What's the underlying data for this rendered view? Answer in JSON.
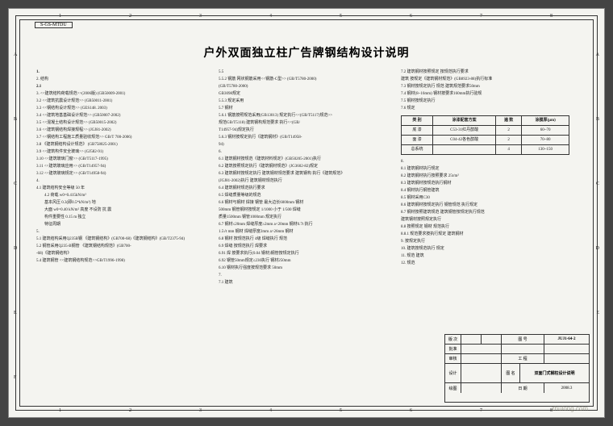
{
  "ref_code": "S-GS-MTDU",
  "title": "户外双面独立柱广告牌钢结构设计说明",
  "ruler": {
    "top_nums": [
      "1",
      "2",
      "3",
      "4",
      "5",
      "6",
      "7",
      "8"
    ],
    "left_letters": [
      "A",
      "B",
      "C",
      "D",
      "E",
      "F"
    ]
  },
  "col1": [
    {
      "t": "1.",
      "cls": "bold"
    },
    {
      "t": "2.  结构"
    },
    {
      "t": "2.1",
      "cls": "bold"
    },
    {
      "t": "3.  <<建筑结构荷载规范>>(2006版)   (GB50009-2001)"
    },
    {
      "t": "3.2  <<建筑抗震设计规范>>             (GB50011-2001)"
    },
    {
      "t": "3.3  <<钢结构设计规范>>               (GES148. 2003)"
    },
    {
      "t": "3.4  <<建筑地基基础设计规范>>         (GB50007-2002)"
    },
    {
      "t": "3.5  <<混凝土结构设计规范>>           (GB50015-2002)"
    },
    {
      "t": "3.6  <<建筑钢结构焊接规程>>           (JGJ81-2002)"
    },
    {
      "t": "3.7  <<钢结构工程施工质量验收规范>>   GB/T 700-2006)"
    },
    {
      "t": "3.8  《建筑钢结构设计规范》     (GB758025-2001)"
    },
    {
      "t": "3.9  <<建筑构件安全玻璃>>           (GJ582-91)"
    },
    {
      "t": "3.10 <<建筑玻璃门窗>>              (GB/T5117-1995)"
    },
    {
      "t": "3.11 <<建筑玻璃应用>>              (GB/T14957-94)"
    },
    {
      "t": "3.12 <<建筑玻璃规定>>              (GB/T14958-94)"
    },
    {
      "t": "4."
    },
    {
      "t": "4.1 建筑结构安全等级  50 年"
    },
    {
      "t": "4.2 荷载  w0=0.415kN/m²",
      "cls": "sub"
    },
    {
      "t": "     基本风压 0.3(即0.5*kN/m²)   地",
      "cls": "sub"
    },
    {
      "t": "     大面  w0=0.40 kN/m²     高度    不设防    抗  震",
      "cls": "sub"
    },
    {
      "t": "     构件重要性  0.15 m      独立",
      "cls": "sub"
    },
    {
      "t": "     特征周期",
      "cls": "sub"
    },
    {
      "t": "5."
    },
    {
      "t": "5.1  建筑结构采用Q235B钢 《建筑钢结构》(GB700-68)《建筑钢结构》(GB/T2375-94)"
    },
    {
      "t": "5.2  钢管采用Q235-B钢管 《建筑钢结构规范》(GB700-"
    },
    {
      "t": "     -68)《建筑钢结构》"
    },
    {
      "t": "5.4  建筑钢管 <<建筑钢结构规范>>GB/T1996-1998)"
    }
  ],
  "col2": [
    {
      "t": "5.5"
    },
    {
      "t": "5.5.2 钢筋  网状钢筋采用<<钢筋-C型>>   (GB/T5780-2000)"
    },
    {
      "t": "                                    (GB/T5780-2000)"
    },
    {
      "t": "              GB3098规定"
    },
    {
      "t": "5.5.3 规定采用"
    },
    {
      "t": "5.7  钢材"
    },
    {
      "t": "5.6.1 钢筋按照规范采用(GB13013)  规定执行<<(GB/T5117)规范>>"
    },
    {
      "t": "       规范GB/T5118)  建筑钢构规范要求  执行<<(GB/"
    },
    {
      "t": "       T14957-94)规定执行"
    },
    {
      "t": "5.6.3 钢材按规定执行《建筑钢材》(GB/T14958-"
    },
    {
      "t": "       94)"
    },
    {
      "t": "6."
    },
    {
      "t": "6.1  建筑钢材按规范《建筑材料规定》(GB50205-2001)执行"
    },
    {
      "t": "6.2  建筑按照规定执行《建筑钢材规范》(JG3602-82)规定"
    },
    {
      "t": "6.3  建筑钢材按规定执行 建筑钢材规范要求 建筑钢构 执行《建筑规范》"
    },
    {
      "t": "     (JGJ81-2002)执行  建筑钢材规范执行"
    },
    {
      "t": "6.4  建筑钢材规范执行要求"
    },
    {
      "t": "6.5  焊缝质量等级的规范"
    },
    {
      "t": "6.6  钢材与钢材 焊接  钢管 最大边长6000mm 钢材"
    },
    {
      "t": "     500mm 钢管钢材按规定 1/1000  小于 1/500  焊缝"
    },
    {
      "t": "     质量1500mm 钢管1000mm 规定执行"
    },
    {
      "t": "6.7  钢材≤20mm 焊缝厚度≥2mm a<20mm 钢材0.7t 执行"
    },
    {
      "t": "     1.5√t mm 钢材  焊缝厚度2mm a>26mm 钢材"
    },
    {
      "t": "6.8  钢材 按规范执行 4级 焊缝执行 规范"
    },
    {
      "t": "6.9  焊缝 按规范执行 焊要求"
    },
    {
      "t": "      6.91 焊 按要求执行(0.04 钢材)钢管按规定执行"
    },
    {
      "t": "      6.92 钢管50mm规定≤230执行 钢材250mm"
    },
    {
      "t": "6.10 钢材执行强度按规范要求 50mm"
    },
    {
      "t": "7."
    },
    {
      "t": "7.1  建筑"
    }
  ],
  "col3": {
    "lines_before": [
      {
        "t": "7.2  建筑钢材按照规定 按规范执行要求"
      },
      {
        "t": "     建筑  按规定《建筑钢材规范》(GB8923-88)执行标准"
      },
      {
        "t": "7.3  钢材按规定执行 规范 建筑规范要求50mm"
      },
      {
        "t": "7.4  钢材(8~16mm) 钢材按要求160mm执行验规"
      },
      {
        "t": "7.5  钢材按规定执行"
      },
      {
        "t": "7.6  规定"
      }
    ],
    "table": {
      "headers": [
        "类 别",
        "涂漆配套方案",
        "遍 数",
        "涂膜厚(μm)"
      ],
      "rows": [
        [
          "底 漆",
          "C53-31红丹醇酸",
          "2",
          "60~70"
        ],
        [
          "面 漆",
          "C04-42各色醇酸",
          "2",
          "70~80"
        ],
        [
          "总系统",
          "",
          "4",
          "130~150"
        ]
      ]
    },
    "lines_after": [
      {
        "t": "8."
      },
      {
        "t": "8.1  建筑钢材执行规定"
      },
      {
        "t": "8.2  建筑钢材执行按照要求 25t/m²"
      },
      {
        "t": "8.3  建筑钢材按规范执行钢材"
      },
      {
        "t": "8.4  钢材执行钢管建筑"
      },
      {
        "t": "8.5  钢材采用C30"
      },
      {
        "t": "8.6  建筑钢材按规定执行 钢管规范 执行规定"
      },
      {
        "t": "8.7  钢材按照建筑规范 建筑钢管按规定执行规范"
      },
      {
        "t": "     建筑钢材按照规定执行"
      },
      {
        "t": "8.8  按照规定 钢材 规范执行"
      },
      {
        "t": "8.8.1 规范要求按执行规定 建筑钢材"
      },
      {
        "t": "9.   按规定执行"
      },
      {
        "t": "10.  建筑按规范执行 规定"
      },
      {
        "t": "11.  规范 建筑"
      },
      {
        "t": "12.  规范"
      }
    ]
  },
  "title_block": {
    "drawing_no": "JUJ1-64-2",
    "drawing_name": "双面门式钢柱设计说明",
    "date": "2008.3",
    "labels": {
      "ver": "版 次",
      "app": "批准",
      "chk": "审核",
      "des": "设计",
      "dra": "绘图",
      "pro": "工 程",
      "dwg": "图 号",
      "name": "图 名",
      "date": "日 期"
    }
  },
  "watermark": "zhulong.com"
}
